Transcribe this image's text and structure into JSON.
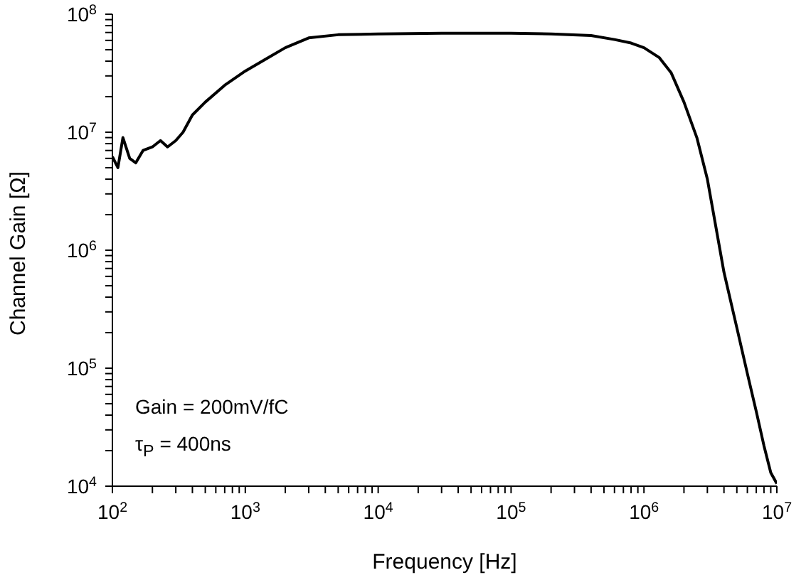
{
  "chart_data": {
    "type": "line",
    "xlabel": "Frequency [Hz]",
    "ylabel": "Channel Gain [Ω]",
    "log": "xy",
    "xlim": [
      100,
      10000000
    ],
    "ylim": [
      10000,
      100000000
    ],
    "xticks": [
      {
        "value": 100,
        "label": "10$^{2}$"
      },
      {
        "value": 200,
        "label": null
      },
      {
        "value": 300,
        "label": null
      },
      {
        "value": 400,
        "label": null
      },
      {
        "value": 500,
        "label": null
      },
      {
        "value": 600,
        "label": null
      },
      {
        "value": 700,
        "label": null
      },
      {
        "value": 800,
        "label": null
      },
      {
        "value": 900,
        "label": null
      },
      {
        "value": 1000,
        "label": "10$^{3}$"
      },
      {
        "value": 2000,
        "label": null
      },
      {
        "value": 3000,
        "label": null
      },
      {
        "value": 4000,
        "label": null
      },
      {
        "value": 5000,
        "label": null
      },
      {
        "value": 6000,
        "label": null
      },
      {
        "value": 7000,
        "label": null
      },
      {
        "value": 8000,
        "label": null
      },
      {
        "value": 9000,
        "label": null
      },
      {
        "value": 10000,
        "label": "10$^{4}$"
      },
      {
        "value": 20000,
        "label": null
      },
      {
        "value": 30000,
        "label": null
      },
      {
        "value": 40000,
        "label": null
      },
      {
        "value": 50000,
        "label": null
      },
      {
        "value": 60000,
        "label": null
      },
      {
        "value": 70000,
        "label": null
      },
      {
        "value": 80000,
        "label": null
      },
      {
        "value": 90000,
        "label": null
      },
      {
        "value": 100000,
        "label": "10$^{5}$"
      },
      {
        "value": 200000,
        "label": null
      },
      {
        "value": 300000,
        "label": null
      },
      {
        "value": 400000,
        "label": null
      },
      {
        "value": 500000,
        "label": null
      },
      {
        "value": 600000,
        "label": null
      },
      {
        "value": 700000,
        "label": null
      },
      {
        "value": 800000,
        "label": null
      },
      {
        "value": 900000,
        "label": null
      },
      {
        "value": 1000000,
        "label": "10$^{6}$"
      },
      {
        "value": 2000000,
        "label": null
      },
      {
        "value": 3000000,
        "label": null
      },
      {
        "value": 4000000,
        "label": null
      },
      {
        "value": 5000000,
        "label": null
      },
      {
        "value": 6000000,
        "label": null
      },
      {
        "value": 7000000,
        "label": null
      },
      {
        "value": 8000000,
        "label": null
      },
      {
        "value": 9000000,
        "label": null
      },
      {
        "value": 10000000,
        "label": "10$^{7}$"
      }
    ],
    "yticks": [
      {
        "value": 10000,
        "label": "10$^{4}$"
      },
      {
        "value": 20000,
        "label": null
      },
      {
        "value": 30000,
        "label": null
      },
      {
        "value": 40000,
        "label": null
      },
      {
        "value": 50000,
        "label": null
      },
      {
        "value": 60000,
        "label": null
      },
      {
        "value": 70000,
        "label": null
      },
      {
        "value": 80000,
        "label": null
      },
      {
        "value": 90000,
        "label": null
      },
      {
        "value": 100000,
        "label": "10$^{5}$"
      },
      {
        "value": 200000,
        "label": null
      },
      {
        "value": 300000,
        "label": null
      },
      {
        "value": 400000,
        "label": null
      },
      {
        "value": 500000,
        "label": null
      },
      {
        "value": 600000,
        "label": null
      },
      {
        "value": 700000,
        "label": null
      },
      {
        "value": 800000,
        "label": null
      },
      {
        "value": 900000,
        "label": null
      },
      {
        "value": 1000000,
        "label": "10$^{6}$"
      },
      {
        "value": 2000000,
        "label": null
      },
      {
        "value": 3000000,
        "label": null
      },
      {
        "value": 4000000,
        "label": null
      },
      {
        "value": 5000000,
        "label": null
      },
      {
        "value": 6000000,
        "label": null
      },
      {
        "value": 7000000,
        "label": null
      },
      {
        "value": 8000000,
        "label": null
      },
      {
        "value": 9000000,
        "label": null
      },
      {
        "value": 10000000,
        "label": "10$^{7}$"
      },
      {
        "value": 20000000,
        "label": null
      },
      {
        "value": 30000000,
        "label": null
      },
      {
        "value": 40000000,
        "label": null
      },
      {
        "value": 50000000,
        "label": null
      },
      {
        "value": 60000000,
        "label": null
      },
      {
        "value": 70000000,
        "label": null
      },
      {
        "value": 80000000,
        "label": null
      },
      {
        "value": 90000000,
        "label": null
      },
      {
        "value": 100000000,
        "label": "10$^{8}$"
      }
    ],
    "x": [
      100,
      110,
      120,
      135,
      150,
      170,
      200,
      230,
      260,
      300,
      340,
      400,
      500,
      700,
      1000,
      1500,
      2000,
      3000,
      5000,
      10000,
      30000,
      100000,
      200000,
      400000,
      600000,
      800000,
      1000000,
      1300000,
      1600000,
      2000000,
      2500000,
      3000000,
      4000000,
      5000000,
      6000000,
      7000000,
      8000000,
      9000000,
      10000000
    ],
    "series": [
      {
        "color": "#000000",
        "values": [
          6200000,
          5000000,
          9000000,
          6000000,
          5500000,
          7000000,
          7500000,
          8500000,
          7500000,
          8500000,
          10000000,
          14000000,
          18000000,
          25000000,
          33000000,
          43000000,
          52000000,
          63000000,
          67000000,
          68000000,
          69000000,
          69000000,
          68000000,
          66000000,
          61000000,
          57000000,
          52000000,
          43000000,
          32000000,
          18000000,
          9000000,
          4000000,
          650000,
          220000,
          90000,
          43000,
          22000,
          13000,
          10500
        ]
      }
    ],
    "annotations": [
      "Gain = 200mV/fC",
      "τ$_{P}$ = 400ns"
    ]
  }
}
